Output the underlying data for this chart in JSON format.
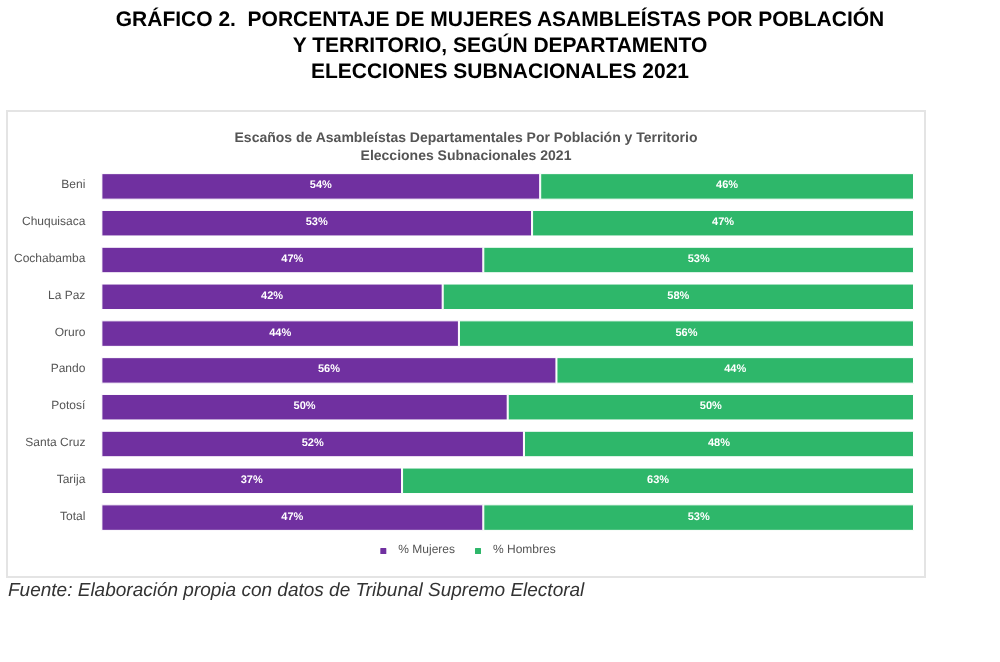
{
  "chart_data": {
    "type": "bar",
    "orientation": "horizontal",
    "stacked": true,
    "title": "GRÁFICO 2.  PORCENTAJE DE MUJERES ASAMBLEÍSTAS POR POBLACIÓN\nY TERRITORIO, SEGÚN DEPARTAMENTO\nELECCIONES SUBNACIONALES 2021",
    "subtitle": "Escaños de Asambleístas Departamentales Por Población y Territorio\nElecciones Subnacionales 2021",
    "annotations": [
      "Fuente: Elaboración propia con datos de Tribunal Supremo Electoral"
    ],
    "categories": [
      "Beni",
      "Chuquisaca",
      "Cochabamba",
      "La Paz",
      "Oruro",
      "Pando",
      "Potosí",
      "Santa Cruz",
      "Tarija",
      "Total"
    ],
    "series": [
      {
        "name": "% Mujeres",
        "color": "#7030a0",
        "values": [
          54,
          53,
          47,
          42,
          44,
          56,
          50,
          52,
          37,
          47
        ],
        "value_labels": [
          "54%",
          "53%",
          "47%",
          "42%",
          "44%",
          "56%",
          "50%",
          "52%",
          "37%",
          "47%"
        ]
      },
      {
        "name": "% Hombres",
        "color": "#2eb76a",
        "values": [
          46,
          47,
          53,
          58,
          56,
          44,
          50,
          48,
          63,
          53
        ],
        "value_labels": [
          "46%",
          "47%",
          "53%",
          "58%",
          "56%",
          "44%",
          "50%",
          "48%",
          "63%",
          "53%"
        ]
      }
    ],
    "xlim": [
      0,
      100
    ],
    "tick_labels": "y",
    "legend": "bottom"
  }
}
